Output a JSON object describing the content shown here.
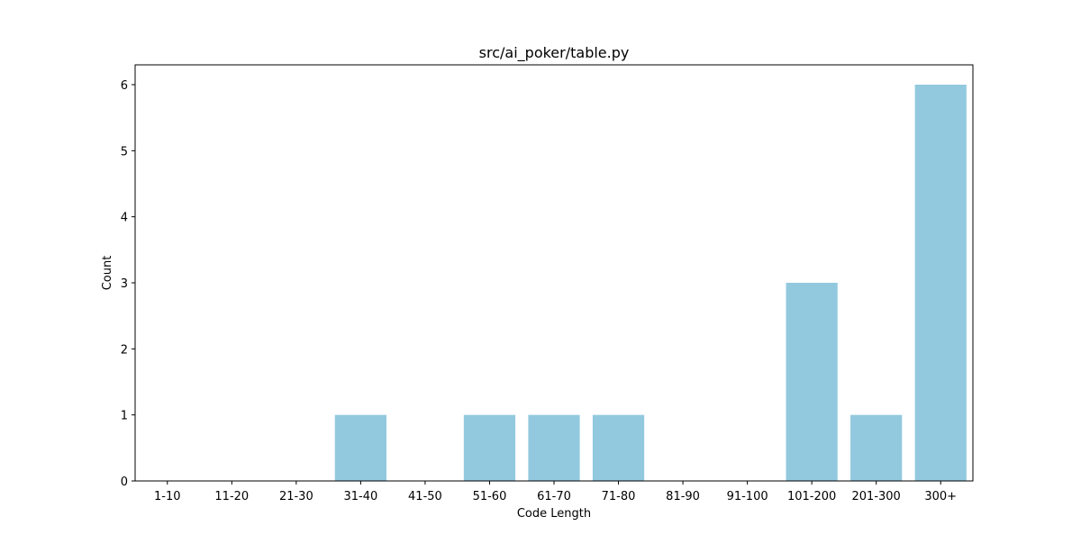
{
  "chart_data": {
    "type": "bar",
    "title": "src/ai_poker/table.py",
    "xlabel": "Code Length",
    "ylabel": "Count",
    "categories": [
      "1-10",
      "11-20",
      "21-30",
      "31-40",
      "41-50",
      "51-60",
      "61-70",
      "71-80",
      "81-90",
      "91-100",
      "101-200",
      "201-300",
      "300+"
    ],
    "values": [
      0,
      0,
      0,
      1,
      0,
      1,
      1,
      1,
      0,
      0,
      3,
      1,
      6
    ],
    "ylim": [
      0,
      6.3
    ],
    "yticks": [
      0,
      1,
      2,
      3,
      4,
      5,
      6
    ],
    "grid": false,
    "legend": "none",
    "bar_color": "#92c9de"
  }
}
